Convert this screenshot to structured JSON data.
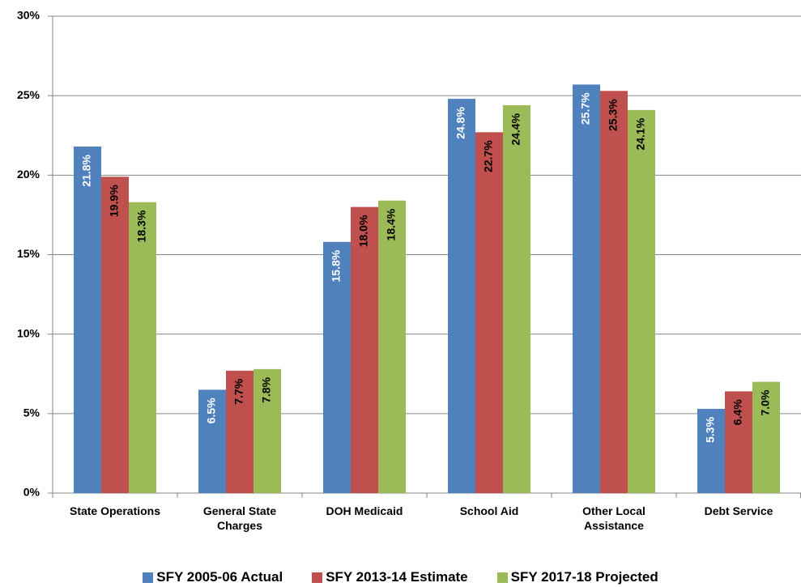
{
  "chart_data": {
    "type": "bar",
    "categories": [
      "State Operations",
      "General State Charges",
      "DOH Medicaid",
      "School Aid",
      "Other Local Assistance",
      "Debt Service"
    ],
    "series": [
      {
        "name": "SFY 2005-06 Actual",
        "color": "#4f81bd",
        "label_color": "#ffffff",
        "values": [
          21.8,
          6.5,
          15.8,
          24.8,
          25.7,
          5.3
        ],
        "value_labels": [
          "21.8%",
          "6.5%",
          "15.8%",
          "24.8%",
          "25.7%",
          "5.3%"
        ]
      },
      {
        "name": "SFY 2013-14 Estimate",
        "color": "#c0504d",
        "label_color": "#000000",
        "values": [
          19.9,
          7.7,
          18.0,
          22.7,
          25.3,
          6.4
        ],
        "value_labels": [
          "19.9%",
          "7.7%",
          "18.0%",
          "22.7%",
          "25.3%",
          "6.4%"
        ]
      },
      {
        "name": "SFY 2017-18 Projected",
        "color": "#9bbb59",
        "label_color": "#000000",
        "values": [
          18.3,
          7.8,
          18.4,
          24.4,
          24.1,
          7.0
        ],
        "value_labels": [
          "18.3%",
          "7.8%",
          "18.4%",
          "24.4%",
          "24.1%",
          "7.0%"
        ]
      }
    ],
    "ylim": [
      0,
      30
    ],
    "yticks": [
      {
        "value": 0,
        "label": "0%"
      },
      {
        "value": 5,
        "label": "5%"
      },
      {
        "value": 10,
        "label": "10%"
      },
      {
        "value": 15,
        "label": "15%"
      },
      {
        "value": 20,
        "label": "20%"
      },
      {
        "value": 25,
        "label": "25%"
      },
      {
        "value": 30,
        "label": "30%"
      }
    ],
    "grid": true,
    "legend": "bottom"
  }
}
